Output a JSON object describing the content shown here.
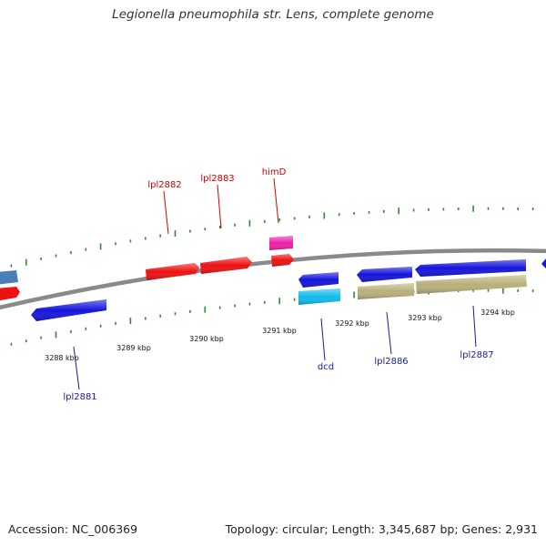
{
  "title": "Legionella pneumophila str. Lens, complete genome",
  "accession_label": "Accession: NC_006369",
  "summary_label": "Topology: circular; Length: 3,345,687 bp; Genes: 2,931",
  "colors": {
    "backbone": "#8a8a8a",
    "tick": "#2e8b2e",
    "forward_label": "#cc0000",
    "reverse_label": "#1a1aa0",
    "gene_red": "#ee1111",
    "gene_blue": "#1515dd",
    "gene_pink": "#ee22aa",
    "gene_cyan": "#11bbee",
    "gene_khaki": "#b8b07a",
    "gene_steel": "#4a7fb5"
  },
  "kbp_labels": [
    "3288 kbp",
    "3289 kbp",
    "3290 kbp",
    "3291 kbp",
    "3292 kbp",
    "3293 kbp",
    "3294 kbp"
  ],
  "genes_forward": [
    {
      "name": "lpl2882"
    },
    {
      "name": "lpl2883"
    },
    {
      "name": "himD"
    }
  ],
  "genes_reverse": [
    {
      "name": "lpl2881"
    },
    {
      "name": "dcd"
    },
    {
      "name": "lpl2886"
    },
    {
      "name": "lpl2887"
    }
  ]
}
